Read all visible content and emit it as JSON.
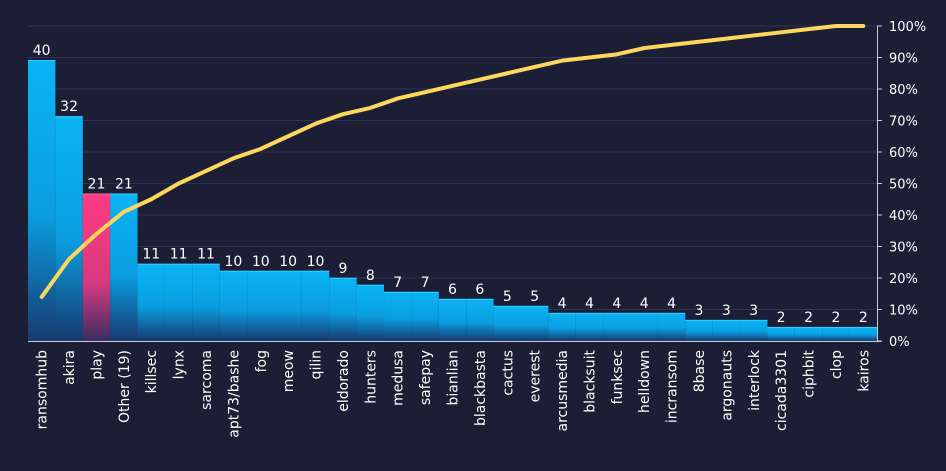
{
  "chart_data": {
    "type": "bar",
    "subtype": "pareto",
    "title": "",
    "xlabel": "",
    "ylabel": "",
    "categories": [
      "ransomhub",
      "akira",
      "play",
      "Other (19)",
      "killsec",
      "lynx",
      "sarcoma",
      "apt73/bashe",
      "fog",
      "meow",
      "qilin",
      "eldorado",
      "hunters",
      "medusa",
      "safepay",
      "bianlian",
      "blackbasta",
      "cactus",
      "everest",
      "arcusmedia",
      "blacksuit",
      "funksec",
      "helldown",
      "incransom",
      "8base",
      "argonauts",
      "interlock",
      "cicada3301",
      "ciphbit",
      "clop",
      "kairos"
    ],
    "series": [
      {
        "type": "bar",
        "values": [
          40,
          32,
          21,
          21,
          11,
          11,
          11,
          10,
          10,
          10,
          10,
          9,
          8,
          7,
          7,
          6,
          6,
          5,
          5,
          4,
          4,
          4,
          4,
          4,
          3,
          3,
          3,
          2,
          2,
          2,
          2
        ],
        "color": "#0aaeef",
        "highlight_index": 2,
        "highlight_color": "#ff3a82"
      },
      {
        "type": "line",
        "axis": "right",
        "values": [
          14,
          26,
          34,
          41,
          45,
          50,
          54,
          58,
          61,
          65,
          69,
          72,
          74,
          77,
          79,
          81,
          83,
          85,
          87,
          89,
          90,
          91,
          93,
          94,
          95,
          96,
          97,
          98,
          99,
          100,
          100
        ],
        "color": "#fbd85d"
      }
    ],
    "ylim": [
      0,
      40
    ],
    "y2lim": [
      0,
      100
    ],
    "y2_ticks": [
      "0%",
      "10%",
      "20%",
      "30%",
      "40%",
      "50%",
      "60%",
      "70%",
      "80%",
      "90%",
      "100%"
    ],
    "grid": true,
    "legend": "none"
  }
}
